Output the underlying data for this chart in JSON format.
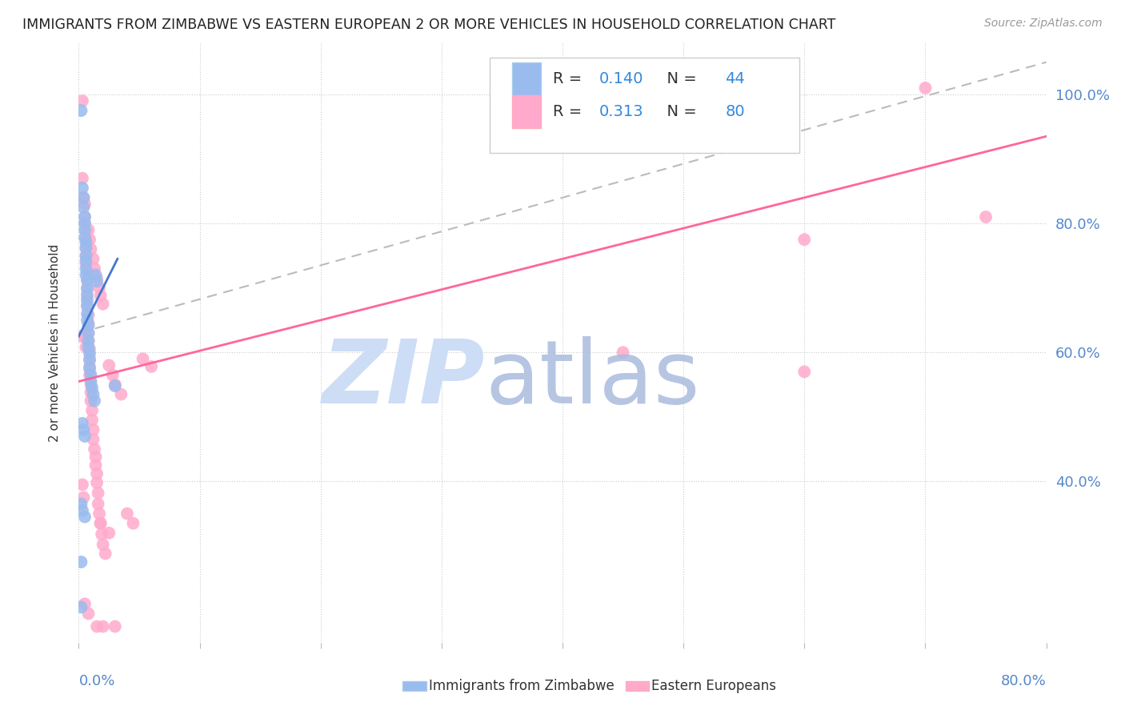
{
  "title": "IMMIGRANTS FROM ZIMBABWE VS EASTERN EUROPEAN 2 OR MORE VEHICLES IN HOUSEHOLD CORRELATION CHART",
  "source": "Source: ZipAtlas.com",
  "ylabel": "2 or more Vehicles in Household",
  "blue_color": "#99BBEE",
  "pink_color": "#FFAACC",
  "blue_line_color": "#4477CC",
  "pink_line_color": "#FF6699",
  "dashed_line_color": "#BBBBBB",
  "xlim": [
    0.0,
    0.8
  ],
  "ylim": [
    0.15,
    1.08
  ],
  "yticks": [
    0.4,
    0.6,
    0.8,
    1.0
  ],
  "ytick_labels": [
    "40.0%",
    "60.0%",
    "80.0%",
    "100.0%"
  ],
  "blue_trend_x": [
    0.0,
    0.032
  ],
  "blue_trend_y": [
    0.625,
    0.745
  ],
  "pink_trend_x": [
    0.0,
    0.8
  ],
  "pink_trend_y": [
    0.555,
    0.935
  ],
  "dashed_trend_x": [
    0.0,
    0.8
  ],
  "dashed_trend_y": [
    0.63,
    1.05
  ],
  "blue_points": [
    [
      0.002,
      0.975
    ],
    [
      0.003,
      0.855
    ],
    [
      0.004,
      0.84
    ],
    [
      0.004,
      0.825
    ],
    [
      0.005,
      0.81
    ],
    [
      0.005,
      0.8
    ],
    [
      0.005,
      0.79
    ],
    [
      0.005,
      0.778
    ],
    [
      0.006,
      0.77
    ],
    [
      0.006,
      0.762
    ],
    [
      0.006,
      0.75
    ],
    [
      0.006,
      0.742
    ],
    [
      0.006,
      0.73
    ],
    [
      0.006,
      0.72
    ],
    [
      0.007,
      0.712
    ],
    [
      0.007,
      0.7
    ],
    [
      0.007,
      0.69
    ],
    [
      0.007,
      0.68
    ],
    [
      0.007,
      0.672
    ],
    [
      0.007,
      0.66
    ],
    [
      0.007,
      0.65
    ],
    [
      0.008,
      0.642
    ],
    [
      0.008,
      0.63
    ],
    [
      0.008,
      0.618
    ],
    [
      0.008,
      0.608
    ],
    [
      0.009,
      0.598
    ],
    [
      0.009,
      0.588
    ],
    [
      0.009,
      0.575
    ],
    [
      0.01,
      0.565
    ],
    [
      0.01,
      0.555
    ],
    [
      0.011,
      0.545
    ],
    [
      0.012,
      0.535
    ],
    [
      0.013,
      0.525
    ],
    [
      0.014,
      0.72
    ],
    [
      0.015,
      0.71
    ],
    [
      0.03,
      0.548
    ],
    [
      0.003,
      0.49
    ],
    [
      0.004,
      0.48
    ],
    [
      0.005,
      0.47
    ],
    [
      0.002,
      0.365
    ],
    [
      0.003,
      0.355
    ],
    [
      0.005,
      0.345
    ],
    [
      0.002,
      0.275
    ],
    [
      0.002,
      0.205
    ]
  ],
  "pink_points": [
    [
      0.003,
      0.99
    ],
    [
      0.003,
      0.87
    ],
    [
      0.004,
      0.84
    ],
    [
      0.005,
      0.83
    ],
    [
      0.005,
      0.81
    ],
    [
      0.005,
      0.8
    ],
    [
      0.006,
      0.788
    ],
    [
      0.006,
      0.775
    ],
    [
      0.006,
      0.762
    ],
    [
      0.006,
      0.75
    ],
    [
      0.006,
      0.738
    ],
    [
      0.007,
      0.725
    ],
    [
      0.007,
      0.712
    ],
    [
      0.007,
      0.698
    ],
    [
      0.007,
      0.685
    ],
    [
      0.007,
      0.672
    ],
    [
      0.008,
      0.658
    ],
    [
      0.008,
      0.645
    ],
    [
      0.008,
      0.63
    ],
    [
      0.008,
      0.618
    ],
    [
      0.009,
      0.605
    ],
    [
      0.009,
      0.59
    ],
    [
      0.009,
      0.578
    ],
    [
      0.009,
      0.565
    ],
    [
      0.01,
      0.55
    ],
    [
      0.01,
      0.538
    ],
    [
      0.01,
      0.525
    ],
    [
      0.011,
      0.51
    ],
    [
      0.011,
      0.495
    ],
    [
      0.012,
      0.48
    ],
    [
      0.012,
      0.465
    ],
    [
      0.013,
      0.45
    ],
    [
      0.014,
      0.438
    ],
    [
      0.014,
      0.425
    ],
    [
      0.015,
      0.412
    ],
    [
      0.015,
      0.398
    ],
    [
      0.016,
      0.382
    ],
    [
      0.016,
      0.365
    ],
    [
      0.017,
      0.35
    ],
    [
      0.018,
      0.335
    ],
    [
      0.019,
      0.318
    ],
    [
      0.02,
      0.302
    ],
    [
      0.022,
      0.288
    ],
    [
      0.003,
      0.395
    ],
    [
      0.004,
      0.375
    ],
    [
      0.005,
      0.625
    ],
    [
      0.006,
      0.608
    ],
    [
      0.002,
      0.625
    ],
    [
      0.008,
      0.79
    ],
    [
      0.009,
      0.775
    ],
    [
      0.01,
      0.76
    ],
    [
      0.012,
      0.745
    ],
    [
      0.013,
      0.73
    ],
    [
      0.015,
      0.715
    ],
    [
      0.017,
      0.7
    ],
    [
      0.018,
      0.688
    ],
    [
      0.02,
      0.675
    ],
    [
      0.025,
      0.58
    ],
    [
      0.028,
      0.565
    ],
    [
      0.03,
      0.55
    ],
    [
      0.035,
      0.535
    ],
    [
      0.04,
      0.35
    ],
    [
      0.045,
      0.335
    ],
    [
      0.053,
      0.59
    ],
    [
      0.06,
      0.578
    ],
    [
      0.005,
      0.21
    ],
    [
      0.008,
      0.195
    ],
    [
      0.015,
      0.175
    ],
    [
      0.018,
      0.335
    ],
    [
      0.02,
      0.175
    ],
    [
      0.025,
      0.32
    ],
    [
      0.03,
      0.175
    ],
    [
      0.45,
      0.6
    ],
    [
      0.6,
      0.57
    ],
    [
      0.7,
      1.01
    ],
    [
      0.6,
      0.775
    ],
    [
      0.75,
      0.81
    ]
  ]
}
